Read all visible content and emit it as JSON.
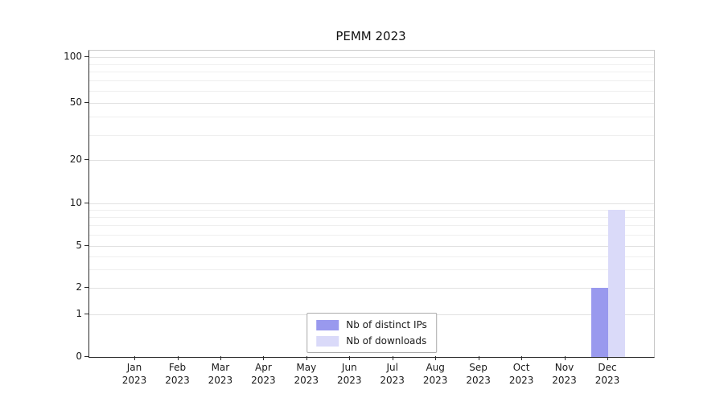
{
  "chart_data": {
    "type": "bar",
    "title": "PEMM 2023",
    "categories": [
      "Jan",
      "Feb",
      "Mar",
      "Apr",
      "May",
      "Jun",
      "Jul",
      "Aug",
      "Sep",
      "Oct",
      "Nov",
      "Dec"
    ],
    "x_sublabel": "2023",
    "series": [
      {
        "name": "Nb of distinct IPs",
        "color": "#9999ee",
        "values": [
          0,
          0,
          0,
          0,
          0,
          0,
          0,
          0,
          0,
          0,
          0,
          2
        ]
      },
      {
        "name": "Nb of downloads",
        "color": "#dadaf9",
        "values": [
          0,
          0,
          0,
          0,
          0,
          0,
          0,
          0,
          0,
          0,
          0,
          9
        ]
      }
    ],
    "yscale": "symlog",
    "ylim": [
      0,
      100
    ],
    "yticks": [
      0,
      1,
      2,
      5,
      10,
      20,
      50,
      100
    ],
    "minor_ticks": [
      3,
      4,
      6,
      7,
      8,
      9,
      30,
      40,
      60,
      70,
      80,
      90
    ],
    "grid": true,
    "legend_position": "lower-center"
  },
  "colors": {
    "grid_major": "#e1e1e1",
    "grid_minor": "#efefef",
    "axis": "#2b2b2b",
    "text": "#1a1a1a",
    "background": "#ffffff"
  }
}
